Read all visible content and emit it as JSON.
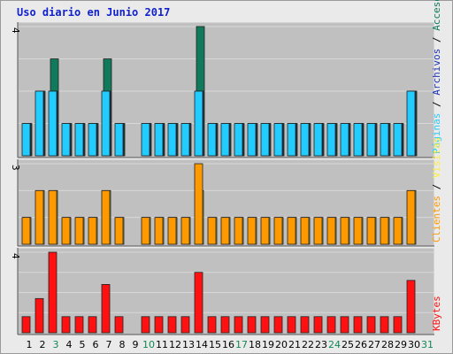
{
  "chart_data": {
    "type": "bar",
    "title": "Uso diario en Junio 2017",
    "categories": [
      "1",
      "2",
      "3",
      "4",
      "5",
      "6",
      "7",
      "8",
      "9",
      "10",
      "11",
      "12",
      "13",
      "14",
      "15",
      "16",
      "17",
      "18",
      "19",
      "20",
      "21",
      "22",
      "23",
      "24",
      "25",
      "26",
      "27",
      "28",
      "29",
      "30",
      "31"
    ],
    "weekend_days": [
      "3",
      "10",
      "17",
      "24",
      "31"
    ],
    "colors": {
      "accesos": "#117a5c",
      "archivos": "#1a33b8",
      "paginas": "#22ccff",
      "visitas": "#ffee33",
      "clientes": "#ff9900",
      "kbytes": "#ff1111",
      "weekday_label": "#000000",
      "weekend_label": "#118855",
      "title": "#1122cc",
      "panel_bg": "#c0c0c0",
      "grid": "#eaeaea"
    },
    "panels": [
      {
        "name": "accesos",
        "ymax_label": "4",
        "ylim": [
          0,
          4
        ],
        "series": [
          {
            "name": "Accesos",
            "color": "#117a5c",
            "values": [
              1,
              2,
              3,
              1,
              1,
              1,
              3,
              1,
              0,
              1,
              1,
              1,
              1,
              4,
              1,
              1,
              1,
              1,
              1,
              1,
              1,
              1,
              1,
              1,
              1,
              1,
              1,
              1,
              1,
              2,
              0
            ]
          },
          {
            "name": "Archivos",
            "color": "#1a33b8",
            "values": [
              1,
              2,
              2,
              1,
              1,
              1,
              2,
              1,
              0,
              1,
              1,
              1,
              1,
              2,
              1,
              1,
              1,
              1,
              1,
              1,
              1,
              1,
              1,
              1,
              1,
              1,
              1,
              1,
              1,
              2,
              0
            ]
          },
          {
            "name": "Páginas",
            "color": "#22ccff",
            "values": [
              1,
              2,
              2,
              1,
              1,
              1,
              2,
              1,
              0,
              1,
              1,
              1,
              1,
              2,
              1,
              1,
              1,
              1,
              1,
              1,
              1,
              1,
              1,
              1,
              1,
              1,
              1,
              1,
              1,
              2,
              0
            ]
          }
        ],
        "legend": [
          "Páginas",
          "/",
          "Archivos",
          "/",
          "Accesos"
        ]
      },
      {
        "name": "visitas",
        "ymax_label": "3",
        "ylim": [
          0,
          3
        ],
        "series": [
          {
            "name": "Visitas",
            "color": "#ffee33",
            "values": [
              1,
              2,
              2,
              1,
              1,
              1,
              2,
              1,
              0,
              1,
              1,
              1,
              1,
              2,
              1,
              1,
              1,
              1,
              1,
              1,
              1,
              1,
              1,
              1,
              1,
              1,
              1,
              1,
              1,
              2,
              0
            ]
          },
          {
            "name": "Clientes",
            "color": "#ff9900",
            "values": [
              1,
              2,
              2,
              1,
              1,
              1,
              2,
              1,
              0,
              1,
              1,
              1,
              1,
              3,
              1,
              1,
              1,
              1,
              1,
              1,
              1,
              1,
              1,
              1,
              1,
              1,
              1,
              1,
              1,
              2,
              0
            ]
          }
        ],
        "legend": [
          "Clientes",
          "/",
          "Visitas"
        ]
      },
      {
        "name": "kbytes",
        "ymax_label": "4",
        "ylim": [
          0,
          4
        ],
        "series": [
          {
            "name": "KBytes",
            "color": "#ff1111",
            "values": [
              0.8,
              1.7,
              4,
              0.8,
              0.8,
              0.8,
              2.4,
              0.8,
              0,
              0.8,
              0.8,
              0.8,
              0.8,
              3,
              0.8,
              0.8,
              0.8,
              0.8,
              0.8,
              0.8,
              0.8,
              0.8,
              0.8,
              0.8,
              0.8,
              0.8,
              0.8,
              0.8,
              0.8,
              2.6,
              0
            ]
          }
        ],
        "legend": [
          "KBytes"
        ]
      }
    ]
  }
}
